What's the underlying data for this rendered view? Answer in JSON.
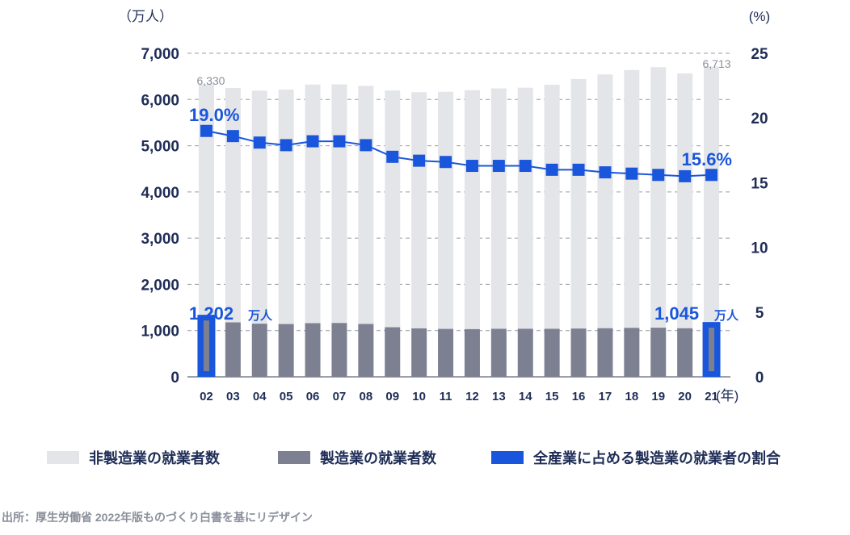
{
  "chart_data": {
    "type": "bar",
    "categories": [
      "02",
      "03",
      "04",
      "05",
      "06",
      "07",
      "08",
      "09",
      "10",
      "11",
      "12",
      "13",
      "14",
      "15",
      "16",
      "17",
      "18",
      "19",
      "20",
      "21"
    ],
    "series": [
      {
        "name": "非製造業の就業者数",
        "type": "bar",
        "axis": "left",
        "color": "#e4e5e9",
        "values": [
          5128,
          5072,
          5043,
          5073,
          5163,
          5163,
          5151,
          5122,
          5109,
          5129,
          5168,
          5202,
          5215,
          5280,
          5398,
          5491,
          5578,
          5636,
          5515,
          5668
        ]
      },
      {
        "name": "製造業の就業者数",
        "type": "bar",
        "axis": "left",
        "color": "#7c8091",
        "values": [
          1202,
          1178,
          1150,
          1142,
          1161,
          1165,
          1144,
          1073,
          1049,
          1037,
          1032,
          1039,
          1040,
          1039,
          1045,
          1052,
          1060,
          1063,
          1051,
          1045
        ]
      },
      {
        "name": "全産業に占める製造業の就業者の割合",
        "type": "line",
        "axis": "right",
        "color": "#1a56db",
        "values": [
          19.0,
          18.6,
          18.1,
          17.9,
          18.2,
          18.2,
          17.9,
          17.0,
          16.7,
          16.6,
          16.3,
          16.3,
          16.3,
          16.0,
          16.0,
          15.8,
          15.7,
          15.6,
          15.5,
          15.6
        ]
      }
    ],
    "totals_labels": {
      "first": "6,330",
      "last": "6,713"
    },
    "left_axis": {
      "unit": "（万人）",
      "ticks": [
        "0",
        "1,000",
        "2,000",
        "3,000",
        "4,000",
        "5,000",
        "6,000",
        "7,000"
      ],
      "ylim": [
        0,
        7000
      ]
    },
    "right_axis": {
      "unit": "(%)",
      "ticks": [
        "0",
        "5",
        "10",
        "15",
        "20",
        "25"
      ],
      "ylim": [
        0,
        25
      ]
    },
    "x_unit": "(年)",
    "annotations": {
      "first_pct": "19.0%",
      "last_pct": "15.6%",
      "first_mfg": "1,202",
      "last_mfg": "1,045",
      "mfg_suffix": "万人"
    },
    "grid": true,
    "legend_position": "bottom"
  },
  "legend": [
    {
      "label": "非製造業の就業者数",
      "color": "#e4e5e9"
    },
    {
      "label": "製造業の就業者数",
      "color": "#7c8091"
    },
    {
      "label": "全産業に占める製造業の就業者の割合",
      "color": "#1a56db"
    }
  ],
  "source": "出所：厚生労働省 2022年版ものづくり白書を基にリデザイン"
}
